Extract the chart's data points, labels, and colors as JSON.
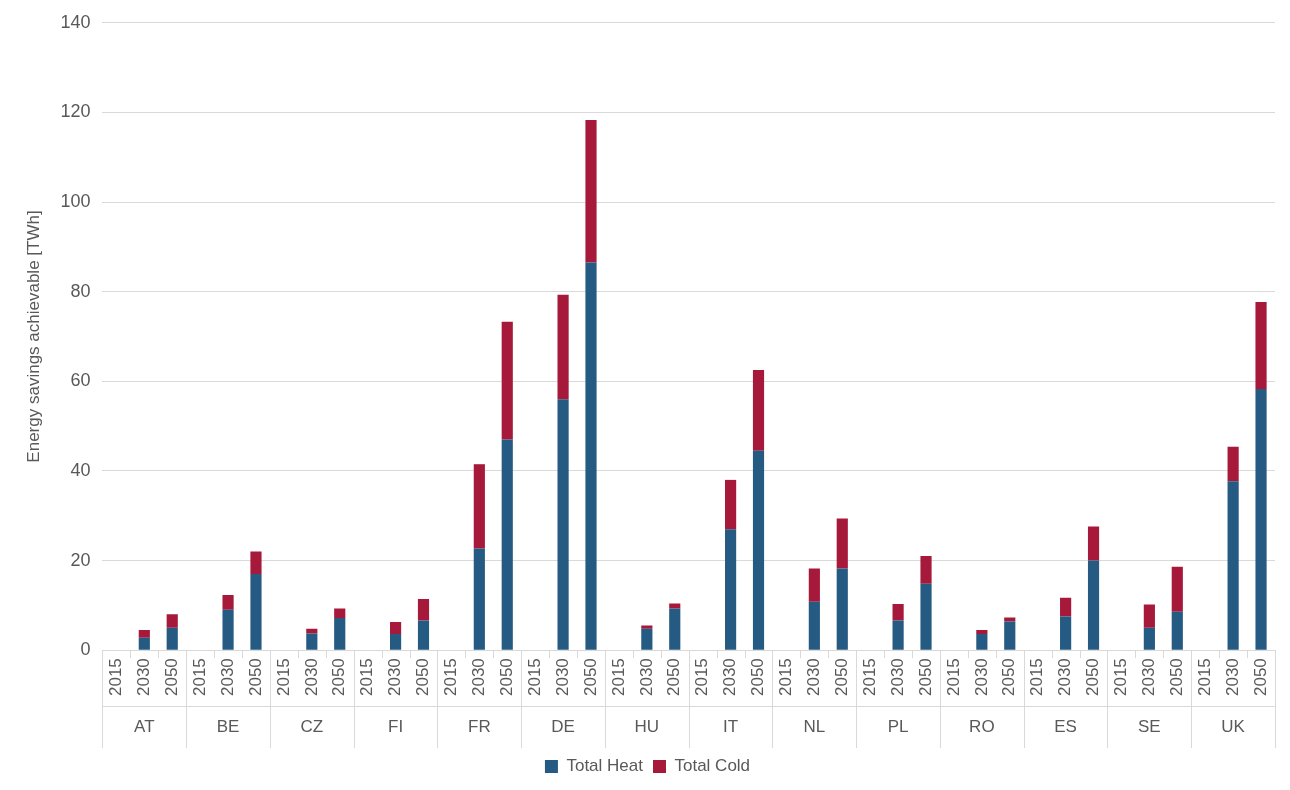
{
  "chart_data": {
    "type": "bar",
    "stacked": true,
    "ylabel": "Energy savings achievable [TWh]",
    "categories": [
      "2015",
      "2030",
      "2050",
      "2015",
      "2030",
      "2050",
      "2015",
      "2030",
      "2050",
      "2015",
      "2030",
      "2050",
      "2015",
      "2030",
      "2050",
      "2015",
      "2030",
      "2050",
      "2015",
      "2030",
      "2050",
      "2015",
      "2030",
      "2050",
      "2015",
      "2030",
      "2050",
      "2015",
      "2030",
      "2050",
      "2015",
      "2030",
      "2050",
      "2015",
      "2030",
      "2050",
      "2015",
      "2030",
      "2050",
      "2015",
      "2030",
      "2050"
    ],
    "annotations": [
      "AT",
      "BE",
      "CZ",
      "FI",
      "FR",
      "DE",
      "HU",
      "IT",
      "NL",
      "PL",
      "RO",
      "ES",
      "SE",
      "UK"
    ],
    "series": [
      {
        "name": "Total Heat",
        "color": "#255a83",
        "values": [
          null,
          2.8,
          5,
          null,
          9,
          17,
          null,
          3.7,
          7.2,
          null,
          3.6,
          6.6,
          null,
          22.7,
          47,
          null,
          56,
          86.5,
          null,
          4.8,
          9.3,
          null,
          27,
          44.5,
          null,
          10.8,
          18.2,
          null,
          6.6,
          14.8,
          null,
          3.6,
          6.4,
          null,
          7.5,
          20,
          null,
          5,
          8.6,
          null,
          37.7,
          58.3
        ]
      },
      {
        "name": "Total Cold",
        "color": "#a6193a",
        "values": [
          null,
          1.7,
          3,
          null,
          3.3,
          5,
          null,
          1.1,
          2.1,
          null,
          2.7,
          4.8,
          null,
          18.8,
          26.3,
          null,
          23.3,
          31.8,
          null,
          0.7,
          1.1,
          null,
          11,
          18,
          null,
          7.4,
          11.2,
          null,
          3.7,
          6.2,
          null,
          0.9,
          0.9,
          null,
          4.2,
          7.6,
          null,
          5.2,
          10,
          null,
          7.7,
          19.4
        ]
      }
    ],
    "ylim": [
      0,
      140
    ],
    "yticks": [
      0,
      20,
      40,
      60,
      80,
      100,
      120,
      140
    ],
    "grid": "y",
    "legend": "bottom"
  }
}
